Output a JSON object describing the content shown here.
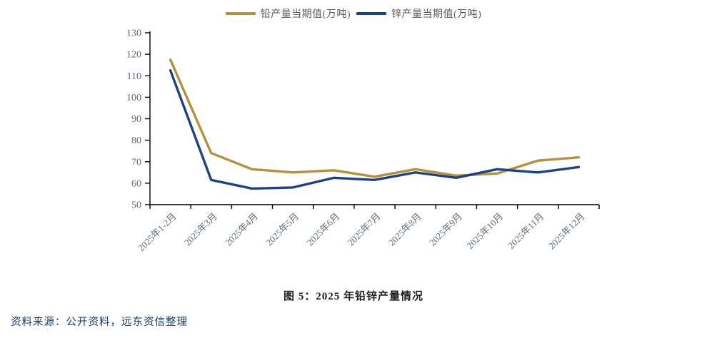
{
  "legend": {
    "items": [
      {
        "label": "铅产量当期值(万吨)",
        "color": "#b5913e"
      },
      {
        "label": "锌产量当期值(万吨)",
        "color": "#1e4289"
      }
    ]
  },
  "chart_data": {
    "type": "line",
    "title": "图 5：2025 年铅锌产量情况",
    "categories": [
      "2025年1-2月",
      "2025年3月",
      "2025年4月",
      "2025年5月",
      "2025年6月",
      "2025年7月",
      "2025年8月",
      "2025年9月",
      "2025年10月",
      "2025年11月",
      "2025年12月"
    ],
    "series": [
      {
        "name": "铅产量当期值(万吨)",
        "color": "#b5913e",
        "values": [
          117.5,
          74,
          66.5,
          65,
          66,
          63,
          66.5,
          63.5,
          64.5,
          70.5,
          72
        ]
      },
      {
        "name": "锌产量当期值(万吨)",
        "color": "#1e4289",
        "values": [
          112.5,
          61.5,
          57.5,
          58,
          62.5,
          61.5,
          65,
          62.5,
          66.5,
          65,
          67.5
        ]
      }
    ],
    "ylim": [
      50,
      130
    ],
    "y_ticks": [
      50,
      60,
      70,
      80,
      90,
      100,
      110,
      120,
      130
    ],
    "grid": false,
    "legend_position": "top",
    "x_label_rotation": -45
  },
  "caption": {
    "title": "图 5：2025 年铅锌产量情况"
  },
  "source": {
    "text": "资料来源：公开资料，远东资信整理"
  }
}
